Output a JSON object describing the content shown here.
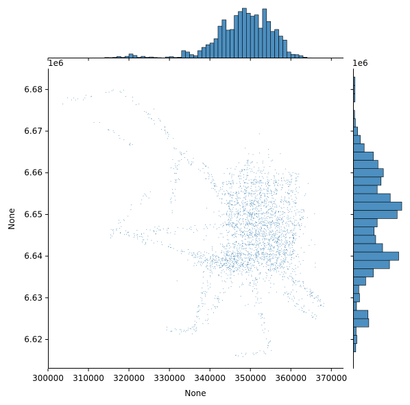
{
  "chart_data": {
    "type": "jointplot",
    "main": {
      "type": "scatter",
      "xlabel": "None",
      "ylabel": "None",
      "x_offset_label": "",
      "y_offset_label": "1e6",
      "xlim": [
        300000,
        373000
      ],
      "ylim": [
        6613000,
        6685000
      ],
      "xticks": [
        300000,
        310000,
        320000,
        330000,
        340000,
        350000,
        360000,
        370000
      ],
      "xtick_labels": [
        "300000",
        "310000",
        "320000",
        "330000",
        "340000",
        "350000",
        "360000",
        "370000"
      ],
      "yticks": [
        6620000,
        6630000,
        6640000,
        6650000,
        6660000,
        6670000,
        6680000
      ],
      "ytick_labels": [
        "6.62",
        "6.63",
        "6.64",
        "6.65",
        "6.66",
        "6.67",
        "6.68"
      ],
      "grid": false,
      "point_color": "#3a7fb0"
    },
    "marginal_x": {
      "type": "histogram",
      "bin_start": 300000,
      "bin_width": 1000,
      "counts": [
        0,
        0,
        0,
        0,
        0,
        0,
        0,
        0,
        0,
        0,
        0,
        0,
        0,
        0,
        0.15,
        0.12,
        0.2,
        0.45,
        0.18,
        0.5,
        1.2,
        0.75,
        0.2,
        0.5,
        0.2,
        0.3,
        0.15,
        0.1,
        0.05,
        0.3,
        0.4,
        0.15,
        0.25,
        2.2,
        1.8,
        1.0,
        0.7,
        2.2,
        3.2,
        4.0,
        4.5,
        5.8,
        9.6,
        11.5,
        8.4,
        8.6,
        12.8,
        14.0,
        15.0,
        13.5,
        12.6,
        13.0,
        9.0,
        14.8,
        11.0,
        8.0,
        8.6,
        6.6,
        5.4,
        1.8,
        1.1,
        1.0,
        0.7,
        0.25,
        0.05,
        0,
        0,
        0,
        0,
        0,
        0,
        0,
        0
      ],
      "max_count": 15,
      "color": "#4c8fc0"
    },
    "marginal_y": {
      "type": "histogram",
      "orientation": "horizontal",
      "bin_start": 6613000,
      "bin_width": 2000,
      "counts": [
        0,
        0,
        0.3,
        0.45,
        0.35,
        2.0,
        1.9,
        0.4,
        0.8,
        0.7,
        1.6,
        2.6,
        4.7,
        5.9,
        3.8,
        2.9,
        2.7,
        3.1,
        5.7,
        6.3,
        4.8,
        3.1,
        3.6,
        3.9,
        3.2,
        2.6,
        1.4,
        0.9,
        0.55,
        0.25,
        0.15,
        0,
        0.2,
        0.2,
        0.2,
        0,
        0
      ],
      "max_count": 6.3,
      "color": "#4c8fc0"
    }
  }
}
